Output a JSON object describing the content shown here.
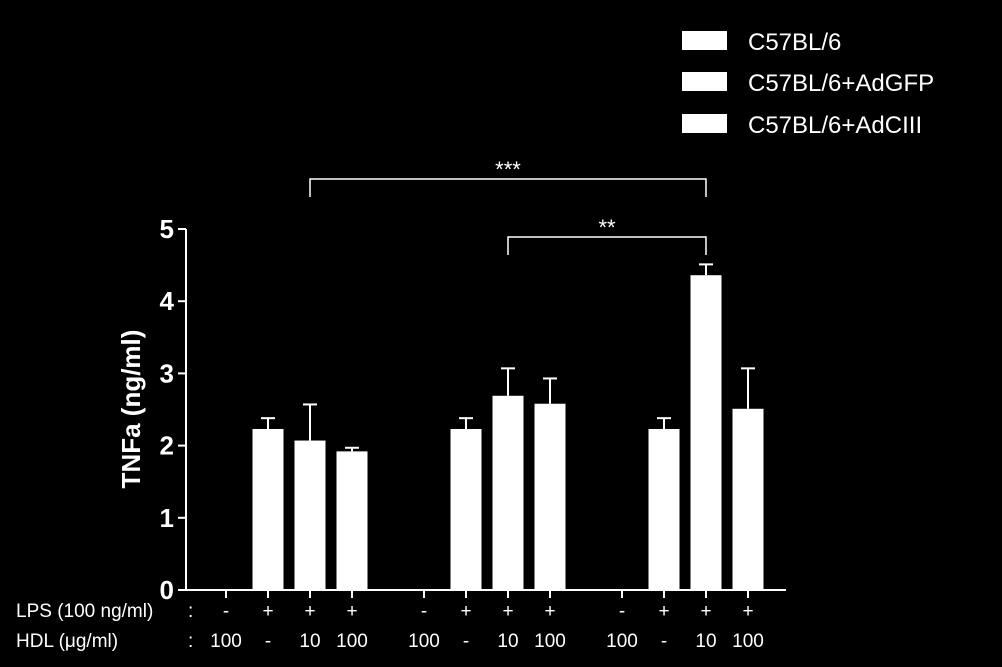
{
  "chart_data": {
    "type": "bar",
    "ylabel": "TNFa (ng/ml)",
    "ylim": [
      0,
      5
    ],
    "yticks": [
      "0",
      "1",
      "2",
      "3",
      "4",
      "5"
    ],
    "legend_position": "top-right",
    "series": [
      {
        "name": "C57BL/6",
        "values": [
          0,
          2.23,
          2.07,
          1.92
        ],
        "errors": [
          0,
          0.15,
          0.5,
          0.05
        ]
      },
      {
        "name": "C57BL/6+AdGFP",
        "values": [
          0,
          2.23,
          2.69,
          2.58
        ],
        "errors": [
          0,
          0.15,
          0.38,
          0.35
        ]
      },
      {
        "name": "C57BL/6+AdCIII",
        "values": [
          0,
          2.23,
          4.36,
          2.51
        ],
        "errors": [
          0,
          0.15,
          0.15,
          0.56
        ]
      }
    ],
    "condition_rows": [
      {
        "label": "LPS (100 ng/ml)",
        "colon": ":",
        "values": [
          "-",
          "+",
          "+",
          "+"
        ]
      },
      {
        "label": "HDL (μg/ml)",
        "colon": ":",
        "values": [
          "100",
          "-",
          "10",
          "100"
        ]
      }
    ],
    "significance": [
      {
        "label": "***",
        "from": [
          0,
          2
        ],
        "to": [
          2,
          2
        ]
      },
      {
        "label": "**",
        "from": [
          1,
          2
        ],
        "to": [
          2,
          2
        ]
      }
    ],
    "colors": {
      "background": "#000000",
      "foreground": "#ffffff"
    }
  }
}
